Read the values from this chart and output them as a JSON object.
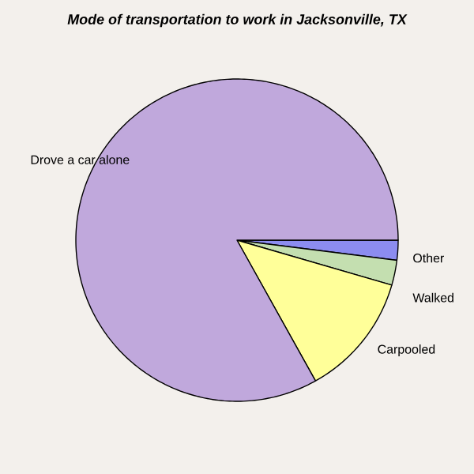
{
  "chart_data": {
    "type": "pie",
    "title": "Mode of transportation to work in Jacksonville, TX",
    "categories": [
      "Other",
      "Walked",
      "Carpooled",
      "Drove a car alone"
    ],
    "values": [
      2.0,
      2.5,
      12.4,
      83.1
    ],
    "colors": [
      "#8c8cf0",
      "#c4dfb0",
      "#ffff99",
      "#c0a8dc"
    ]
  }
}
